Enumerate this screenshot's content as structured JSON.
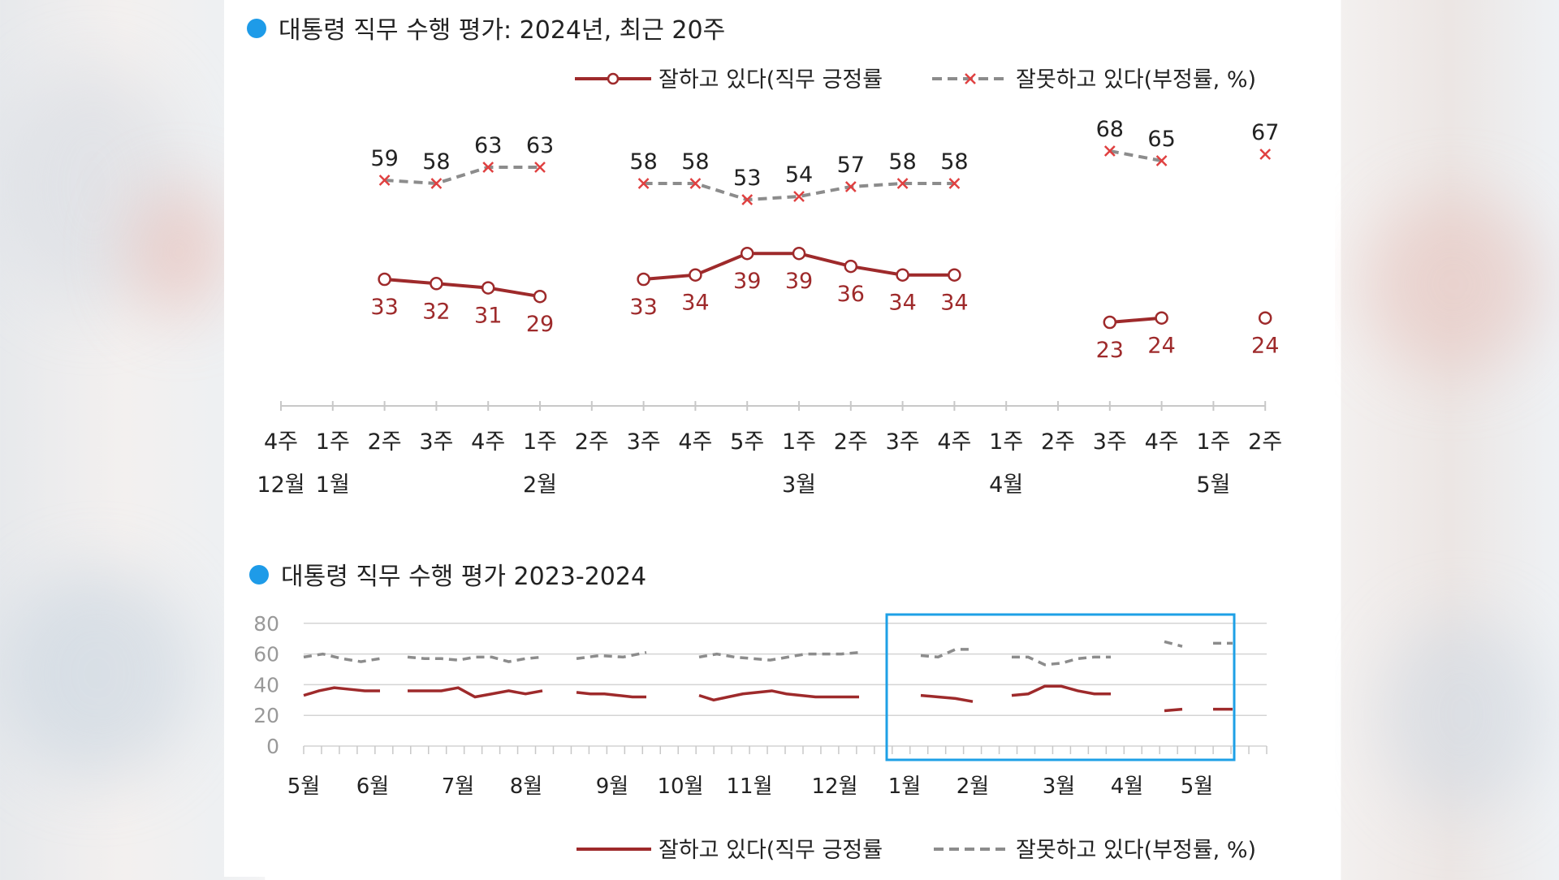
{
  "colors": {
    "positive": "#9e2a2b",
    "negative": "#8c8c8c",
    "negative_marker": "#e04040",
    "title_dot": "#1e9be8",
    "highlight_box": "#1ea0e6",
    "axis": "#c8c8c8",
    "text": "#222222",
    "tick_gray": "#999999"
  },
  "chart_data": [
    {
      "type": "line",
      "title": "대통령 직무 수행 평가: 2024년, 최근 20주",
      "x": [
        "4주",
        "1주",
        "2주",
        "3주",
        "4주",
        "1주",
        "2주",
        "3주",
        "4주",
        "5주",
        "1주",
        "2주",
        "3주",
        "4주",
        "1주",
        "2주",
        "3주",
        "4주",
        "1주",
        "2주"
      ],
      "month_labels": [
        {
          "index": 0,
          "label": "12월"
        },
        {
          "index": 1,
          "label": "1월"
        },
        {
          "index": 5,
          "label": "2월"
        },
        {
          "index": 10,
          "label": "3월"
        },
        {
          "index": 14,
          "label": "4월"
        },
        {
          "index": 18,
          "label": "5월"
        }
      ],
      "series": [
        {
          "name": "잘하고 있다(직무 긍정률",
          "style": "solid",
          "marker": "circle",
          "values": [
            null,
            null,
            33,
            32,
            31,
            29,
            null,
            33,
            34,
            39,
            39,
            36,
            34,
            34,
            null,
            null,
            23,
            24,
            null,
            24
          ]
        },
        {
          "name": "잘못하고 있다(부정률, %)",
          "style": "dashed",
          "marker": "x",
          "values": [
            null,
            null,
            59,
            58,
            63,
            63,
            null,
            58,
            58,
            53,
            54,
            57,
            58,
            58,
            null,
            null,
            68,
            65,
            null,
            67
          ]
        }
      ],
      "legend_position": "top-right"
    },
    {
      "type": "line",
      "title": "대통령 직무 수행 평가 2023-2024",
      "ylim": [
        0,
        80
      ],
      "yticks": [
        0,
        20,
        40,
        60,
        80
      ],
      "month_labels": [
        "5월",
        "6월",
        "7월",
        "8월",
        "9월",
        "10월",
        "11월",
        "12월",
        "1월",
        "2월",
        "3월",
        "4월",
        "5월"
      ],
      "highlight": "1월–5월 (2024)",
      "series": [
        {
          "name": "잘하고 있다(직무 긍정률",
          "style": "solid",
          "segments": [
            [
              33,
              36,
              38,
              37,
              36,
              36
            ],
            [
              36,
              36,
              36,
              38,
              32,
              34,
              36,
              34,
              36
            ],
            [
              35,
              34,
              34,
              33,
              32,
              32
            ],
            [
              33,
              30,
              32,
              34,
              35,
              36,
              34,
              33,
              32,
              32,
              32,
              32
            ],
            [
              33,
              32,
              31,
              29
            ],
            [
              33,
              34,
              39,
              39,
              36,
              34,
              34
            ],
            [
              23,
              24
            ],
            [
              24,
              24
            ]
          ]
        },
        {
          "name": "잘못하고 있다(부정률, %)",
          "style": "dashed",
          "segments": [
            [
              58,
              60,
              57,
              55,
              57
            ],
            [
              58,
              57,
              57,
              56,
              58,
              58,
              55,
              57,
              58
            ],
            [
              57,
              59,
              58,
              61
            ],
            [
              58,
              60,
              58,
              57,
              56,
              58,
              60,
              60,
              60,
              61
            ],
            [
              59,
              58,
              63,
              63
            ],
            [
              58,
              58,
              53,
              54,
              57,
              58,
              58
            ],
            [
              68,
              65
            ],
            [
              67,
              67
            ]
          ]
        }
      ],
      "legend_position": "bottom"
    }
  ]
}
